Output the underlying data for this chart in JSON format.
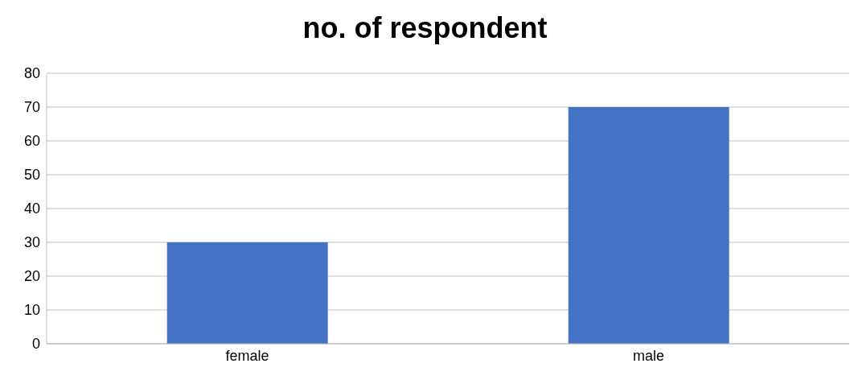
{
  "chart_data": {
    "type": "bar",
    "title": "no. of respondent",
    "categories": [
      "female",
      "male"
    ],
    "values": [
      30,
      70
    ],
    "color": "#4472c4",
    "ylim": [
      0,
      80
    ],
    "yticks": [
      0,
      10,
      20,
      30,
      40,
      50,
      60,
      70,
      80
    ],
    "grid": "y"
  }
}
